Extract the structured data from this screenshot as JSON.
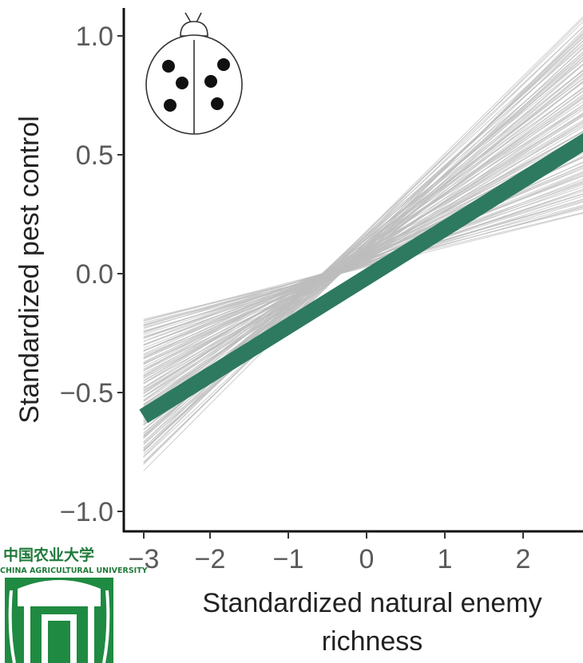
{
  "chart_data": {
    "type": "line",
    "title": "",
    "xlabel_lines": [
      "Standardized natural enemy",
      "richness"
    ],
    "ylabel": "Standardized pest control",
    "xlim": [
      -3,
      3
    ],
    "ylim": [
      -1.1,
      1.1
    ],
    "x_ticks": [
      -3,
      -2,
      -1,
      0,
      1,
      2
    ],
    "x_tick_labels": [
      "−3",
      "−2",
      "−1",
      "0",
      "1",
      "2"
    ],
    "y_ticks": [
      -1.0,
      -0.5,
      0.0,
      0.5,
      1.0
    ],
    "y_tick_labels": [
      "−1.0",
      "−0.5",
      "0.0",
      "0.5",
      "1.0"
    ],
    "grid": false,
    "legend": "none",
    "series": [
      {
        "role": "mean-fit",
        "x": [
          -2.85,
          3.0
        ],
        "y": [
          -0.6,
          0.6
        ],
        "color": "#2d7a60"
      }
    ],
    "posterior_draws": {
      "color": "#bdbdbd",
      "x_range": [
        -2.85,
        3.0
      ],
      "pivot_x": -0.45,
      "pivot_y": 0.0,
      "slope_range": [
        0.08,
        0.33
      ]
    },
    "icon": "ladybird-icon"
  },
  "logo": {
    "icon": "china-agricultural-university-logo",
    "chinese": "中国农业大学",
    "english": "CHINA AGRICULTURAL UNIVERSITY"
  }
}
